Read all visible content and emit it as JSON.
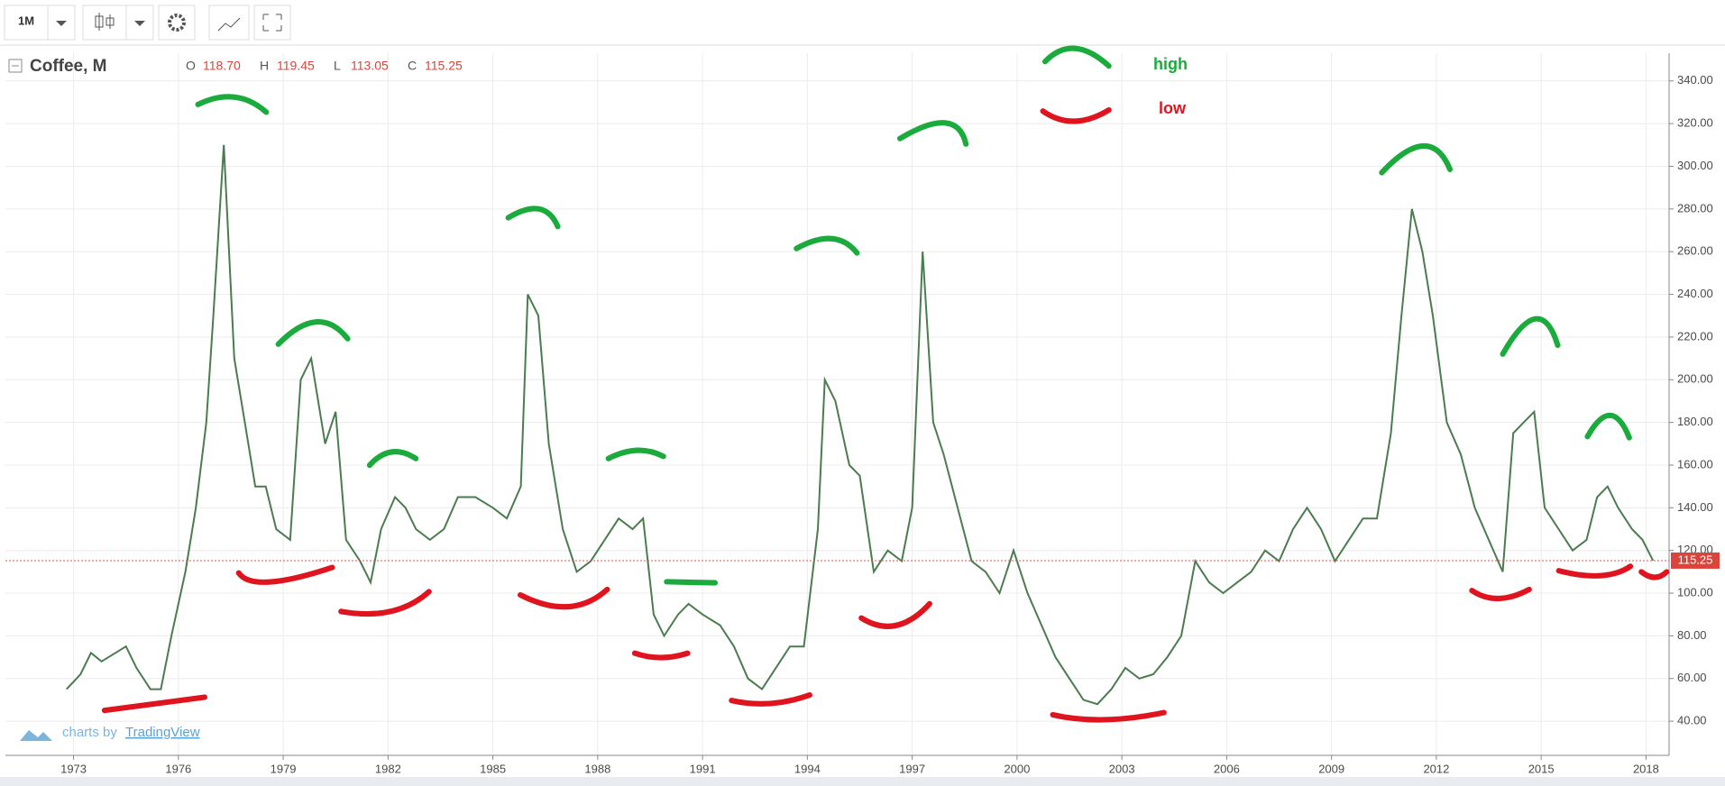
{
  "toolbar": {
    "interval": "1M"
  },
  "chart_data": {
    "type": "line",
    "title": "Coffee, M",
    "ohlc": {
      "labels": [
        "O",
        "H",
        "L",
        "C"
      ],
      "values": [
        118.7,
        119.45,
        113.05,
        115.25
      ],
      "value_labels": [
        "118.70",
        "119.45",
        "113.05",
        "115.25"
      ]
    },
    "x": [
      1972.8,
      1973.2,
      1973.5,
      1973.8,
      1974.2,
      1974.5,
      1974.8,
      1975.2,
      1975.5,
      1975.8,
      1976.2,
      1976.5,
      1976.8,
      1977.0,
      1977.3,
      1977.6,
      1977.9,
      1978.2,
      1978.5,
      1978.8,
      1979.2,
      1979.5,
      1979.8,
      1980.2,
      1980.5,
      1980.8,
      1981.2,
      1981.5,
      1981.8,
      1982.2,
      1982.5,
      1982.8,
      1983.2,
      1983.6,
      1984.0,
      1984.5,
      1985.0,
      1985.4,
      1985.8,
      1986.0,
      1986.3,
      1986.6,
      1987.0,
      1987.4,
      1987.8,
      1988.2,
      1988.6,
      1989.0,
      1989.3,
      1989.6,
      1989.9,
      1990.3,
      1990.6,
      1991.0,
      1991.5,
      1991.9,
      1992.3,
      1992.7,
      1993.1,
      1993.5,
      1993.9,
      1994.3,
      1994.5,
      1994.8,
      1995.2,
      1995.5,
      1995.9,
      1996.3,
      1996.7,
      1997.0,
      1997.3,
      1997.6,
      1997.9,
      1998.3,
      1998.7,
      1999.1,
      1999.5,
      1999.9,
      2000.3,
      2000.7,
      2001.1,
      2001.5,
      2001.9,
      2002.3,
      2002.7,
      2003.1,
      2003.5,
      2003.9,
      2004.3,
      2004.7,
      2005.1,
      2005.5,
      2005.9,
      2006.3,
      2006.7,
      2007.1,
      2007.5,
      2007.9,
      2008.3,
      2008.7,
      2009.1,
      2009.5,
      2009.9,
      2010.3,
      2010.7,
      2011.0,
      2011.3,
      2011.6,
      2011.9,
      2012.3,
      2012.7,
      2013.1,
      2013.5,
      2013.9,
      2014.2,
      2014.5,
      2014.8,
      2015.1,
      2015.5,
      2015.9,
      2016.3,
      2016.6,
      2016.9,
      2017.2,
      2017.6,
      2017.9,
      2018.2
    ],
    "values": [
      55,
      62,
      72,
      68,
      72,
      75,
      65,
      55,
      55,
      80,
      110,
      140,
      180,
      230,
      310,
      210,
      180,
      150,
      150,
      130,
      125,
      200,
      210,
      170,
      185,
      125,
      115,
      105,
      130,
      145,
      140,
      130,
      125,
      130,
      145,
      145,
      140,
      135,
      150,
      240,
      230,
      170,
      130,
      110,
      115,
      125,
      135,
      130,
      135,
      90,
      80,
      90,
      95,
      90,
      85,
      75,
      60,
      55,
      65,
      75,
      75,
      130,
      200,
      190,
      160,
      155,
      110,
      120,
      115,
      140,
      260,
      180,
      165,
      140,
      115,
      110,
      100,
      120,
      100,
      85,
      70,
      60,
      50,
      48,
      55,
      65,
      60,
      62,
      70,
      80,
      115,
      105,
      100,
      105,
      110,
      120,
      115,
      130,
      140,
      130,
      115,
      125,
      135,
      135,
      175,
      230,
      280,
      260,
      230,
      180,
      165,
      140,
      125,
      110,
      175,
      180,
      185,
      140,
      130,
      120,
      125,
      145,
      150,
      140,
      130,
      125,
      115.25
    ],
    "color": "#4a7c4e",
    "xlim": [
      1971.05,
      2018.66
    ],
    "xticks": [
      1973,
      1976,
      1979,
      1982,
      1985,
      1988,
      1991,
      1994,
      1997,
      2000,
      2003,
      2006,
      2009,
      2012,
      2015,
      2018
    ],
    "ylim": [
      24,
      353
    ],
    "yticks": [
      {
        "value": 40,
        "label": "40.00"
      },
      {
        "value": 60,
        "label": "60.00"
      },
      {
        "value": 80,
        "label": "80.00"
      },
      {
        "value": 100,
        "label": "100.00"
      },
      {
        "value": 120,
        "label": "120.00"
      },
      {
        "value": 140,
        "label": "140.00"
      },
      {
        "value": 160,
        "label": "160.00"
      },
      {
        "value": 180,
        "label": "180.00"
      },
      {
        "value": 200,
        "label": "200.00"
      },
      {
        "value": 220,
        "label": "220.00"
      },
      {
        "value": 240,
        "label": "240.00"
      },
      {
        "value": 260,
        "label": "260.00"
      },
      {
        "value": 280,
        "label": "280.00"
      },
      {
        "value": 300,
        "label": "300.00"
      },
      {
        "value": 320,
        "label": "320.00"
      },
      {
        "value": 340,
        "label": "340.00"
      }
    ],
    "grid": true,
    "last_price": {
      "value": 115.25,
      "label": "115.25"
    },
    "annotations": [
      {
        "text": "high",
        "color": "#1aab3c"
      },
      {
        "text": "low",
        "color": "#e0141e"
      }
    ],
    "watermark": {
      "prefix": "charts by",
      "brand": "TradingView"
    }
  }
}
